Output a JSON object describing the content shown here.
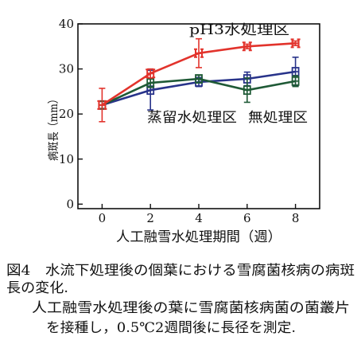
{
  "chart_data": {
    "type": "line",
    "xlabel": "人工融雪水処理期間（週）",
    "ylabel": "病斑長（mm）",
    "x": [
      0,
      2,
      4,
      6,
      8
    ],
    "xticks": [
      0,
      2,
      4,
      6,
      8
    ],
    "yticks": [
      0,
      10,
      20,
      30,
      40
    ],
    "xlim": [
      -1,
      9
    ],
    "ylim": [
      -1,
      40
    ],
    "grid": false,
    "legend": "inline",
    "series": [
      {
        "name": "pH3水処理区",
        "color": "#e2332c",
        "marker": "h-glyph",
        "values": [
          22,
          29,
          33.5,
          35,
          35.7
        ],
        "error": [
          3.7,
          1.0,
          3.2,
          0.5,
          0.5
        ]
      },
      {
        "name": "蒸留水処理区",
        "color": "#28338a",
        "marker": "b-glyph",
        "values": [
          22,
          25.3,
          27.1,
          27.8,
          29.4
        ],
        "error": [
          0.8,
          4.4,
          1.0,
          1.5,
          3.2
        ]
      },
      {
        "name": "無処理区",
        "color": "#1f5a36",
        "marker": "b-glyph",
        "values": [
          22,
          26.9,
          27.8,
          25.3,
          27.3
        ],
        "error": [
          0.8,
          1.0,
          0.8,
          2.7,
          1.2
        ]
      }
    ]
  },
  "caption": {
    "lines": [
      "図4　水流下処理後の個葉における雪腐菌核病の病斑",
      "長の変化.",
      "人工融雪水処理後の葉に雪腐菌核病菌の菌叢片",
      "を接種し，0.5℃2週間後に長径を測定."
    ]
  }
}
